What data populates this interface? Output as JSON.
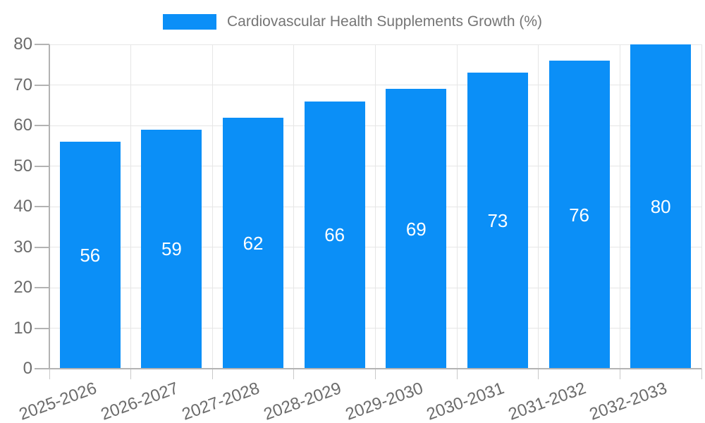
{
  "legend": {
    "label": "Cardiovascular Health Supplements Growth (%)"
  },
  "colors": {
    "bar": "#0b8ff7",
    "grid": "#e6e6e6",
    "axis": "#b3b3b3",
    "x_tick_mark": "#c9c9c9",
    "tick_text": "#6b6b6b",
    "legend_text": "#757575",
    "bar_value_text": "#ffffff",
    "background": "#ffffff"
  },
  "chart_data": {
    "type": "bar",
    "title": "Cardiovascular Health Supplements Growth (%)",
    "categories": [
      "2025-2026",
      "2026-2027",
      "2027-2028",
      "2028-2029",
      "2029-2030",
      "2030-2031",
      "2031-2032",
      "2032-2033"
    ],
    "values": [
      56,
      59,
      62,
      66,
      69,
      73,
      76,
      80
    ],
    "xlabel": "",
    "ylabel": "",
    "ylim": [
      0,
      80
    ],
    "yticks": [
      0,
      10,
      20,
      30,
      40,
      50,
      60,
      70,
      80
    ],
    "grid": true,
    "legend_position": "top-center",
    "value_labels": "inside-center",
    "x_label_rotation_deg": -20
  }
}
